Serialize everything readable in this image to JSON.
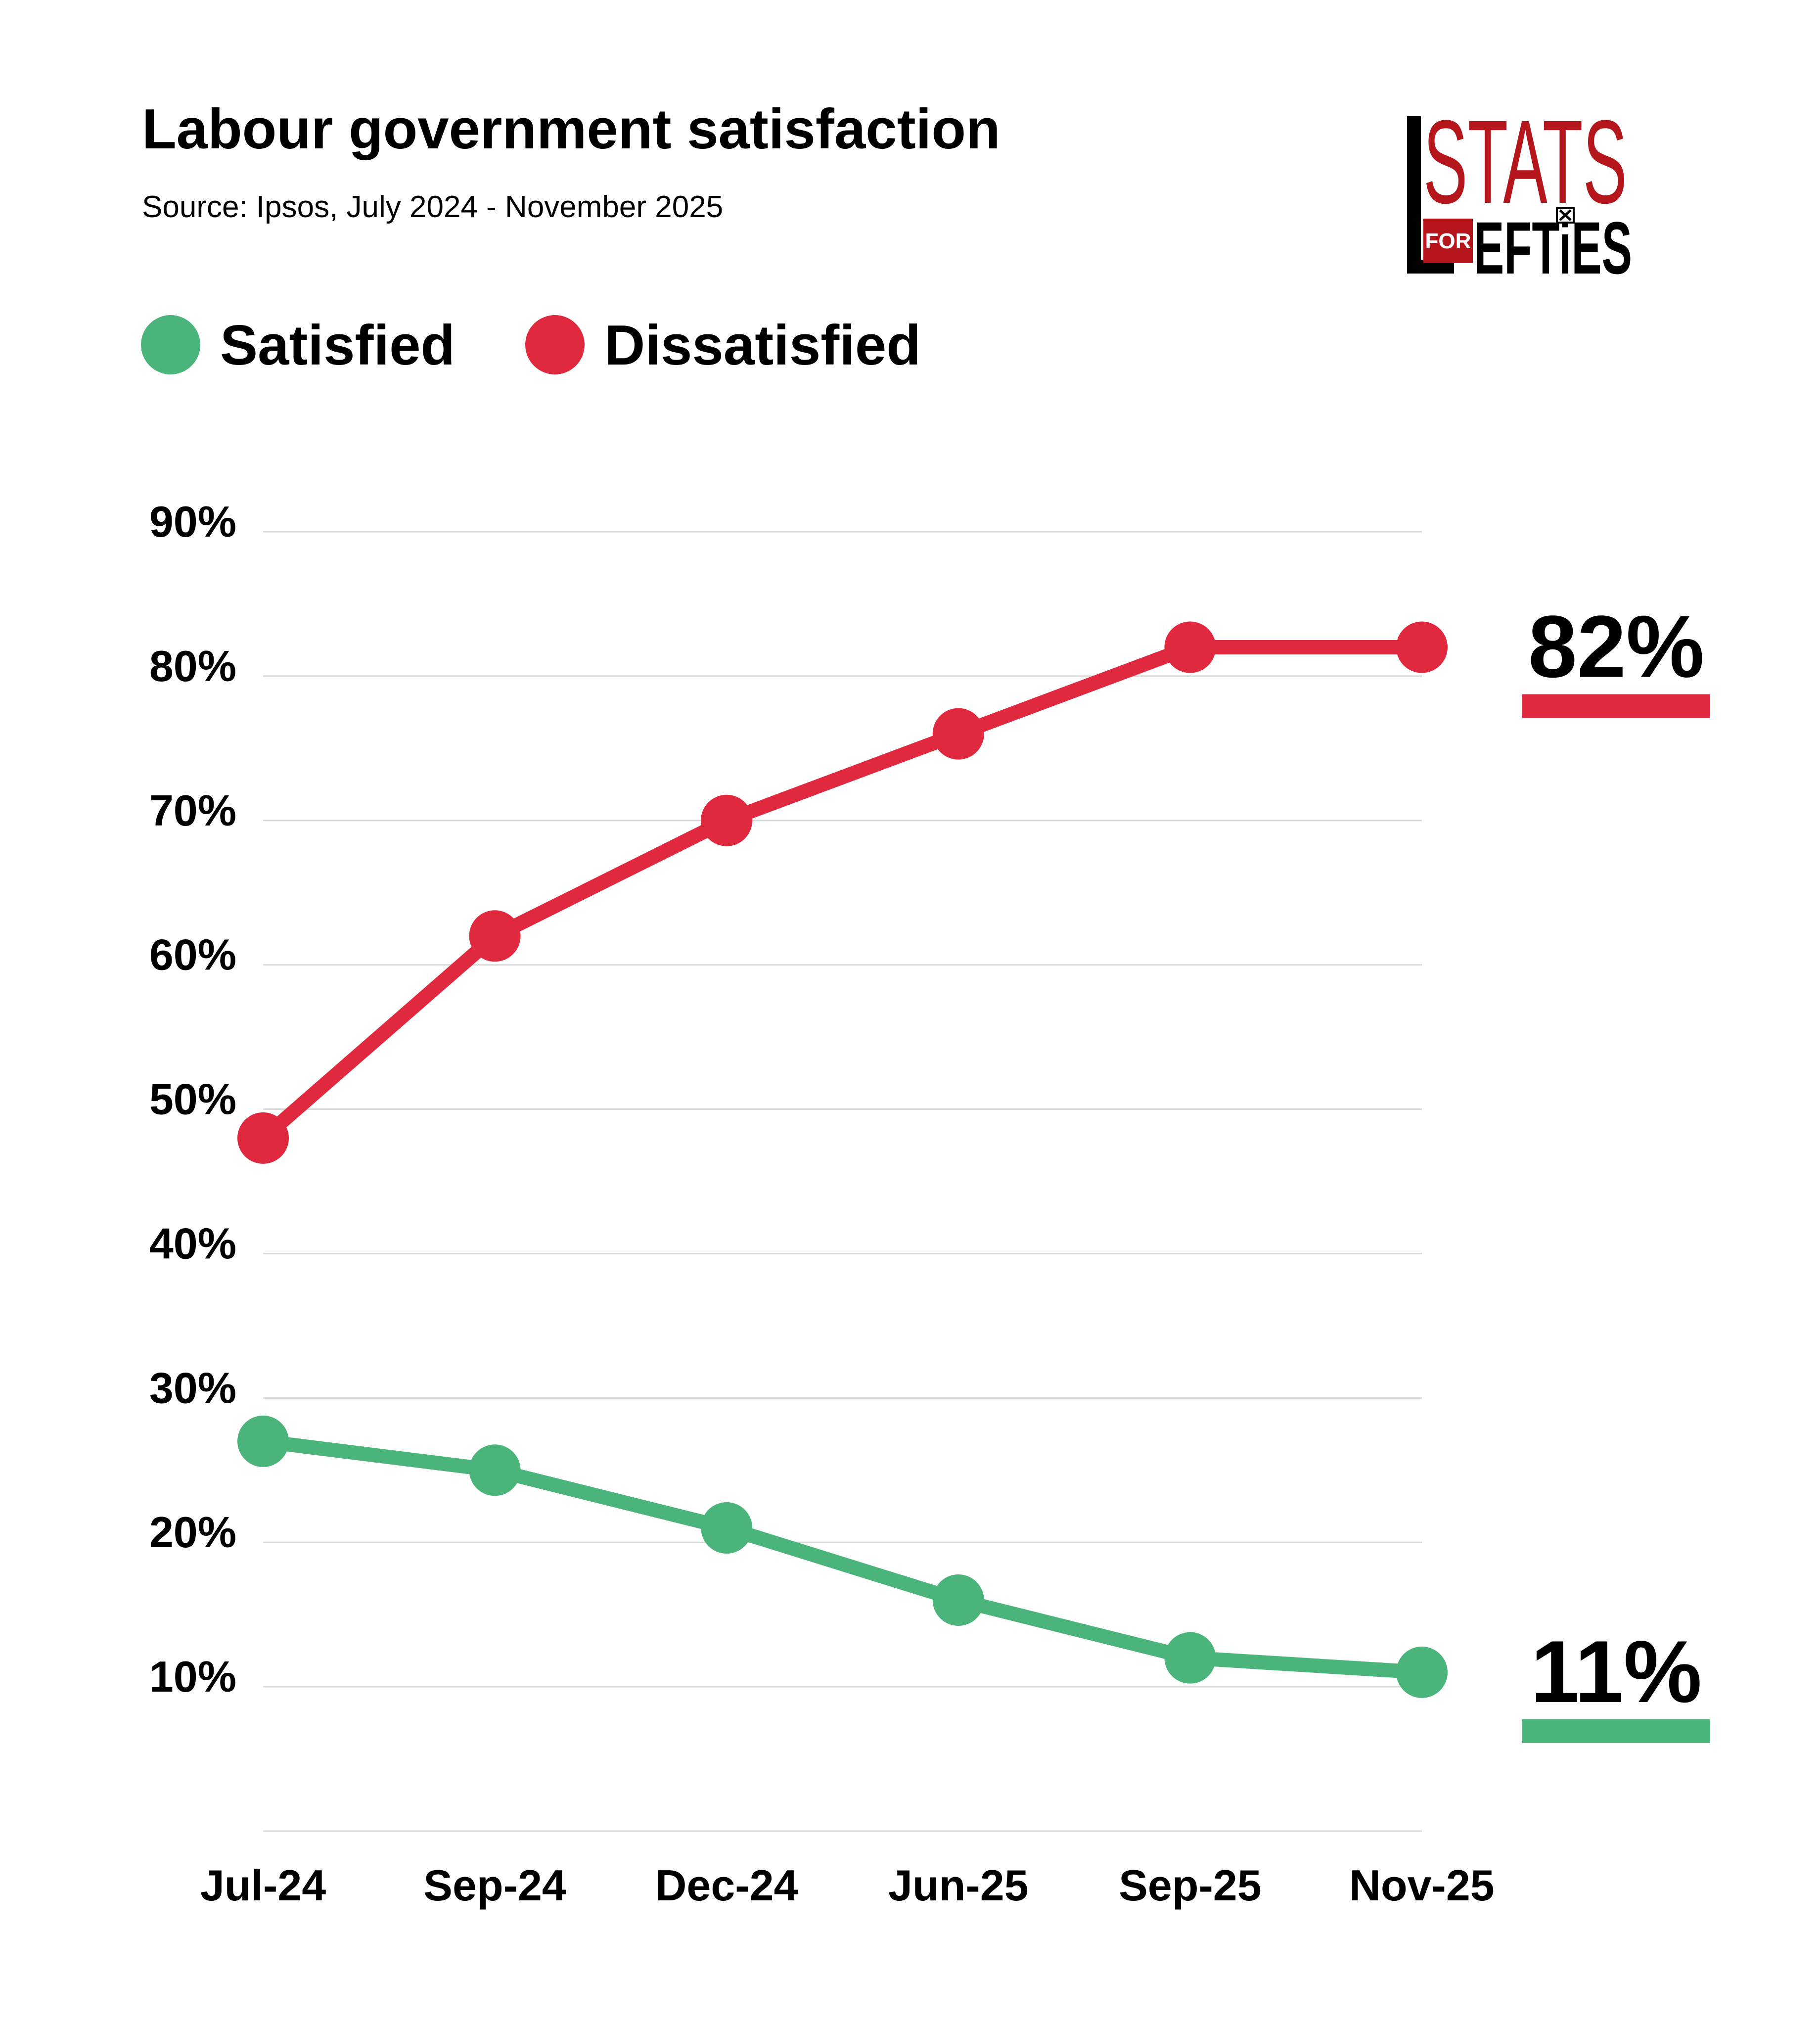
{
  "chart_data": {
    "type": "line",
    "title": "Labour government satisfaction",
    "subtitle": "Source: Ipsos, July 2024 - November 2025",
    "categories": [
      "Jul-24",
      "Sep-24",
      "Dec-24",
      "Jun-25",
      "Sep-25",
      "Nov-25"
    ],
    "series": [
      {
        "name": "Satisfied",
        "color": "#4bb47a",
        "values": [
          27,
          25,
          21,
          16,
          12,
          11
        ],
        "end_label": "11%"
      },
      {
        "name": "Dissatisfied",
        "color": "#e0293f",
        "values": [
          48,
          62,
          70,
          76,
          82,
          82
        ],
        "end_label": "82%"
      }
    ],
    "ylim": [
      0,
      90
    ],
    "yticks": [
      10,
      20,
      30,
      40,
      50,
      60,
      70,
      80,
      90
    ],
    "ytick_labels": [
      "10%",
      "20%",
      "30%",
      "40%",
      "50%",
      "60%",
      "70%",
      "80%",
      "90%"
    ],
    "xlabel": "",
    "ylabel": "",
    "grid": true,
    "legend_position": "top-left"
  },
  "logo": {
    "line1": "STATS",
    "for": "FOR",
    "line2": "EFTiES",
    "colors": {
      "red": "#b5161c",
      "black": "#000000"
    }
  }
}
